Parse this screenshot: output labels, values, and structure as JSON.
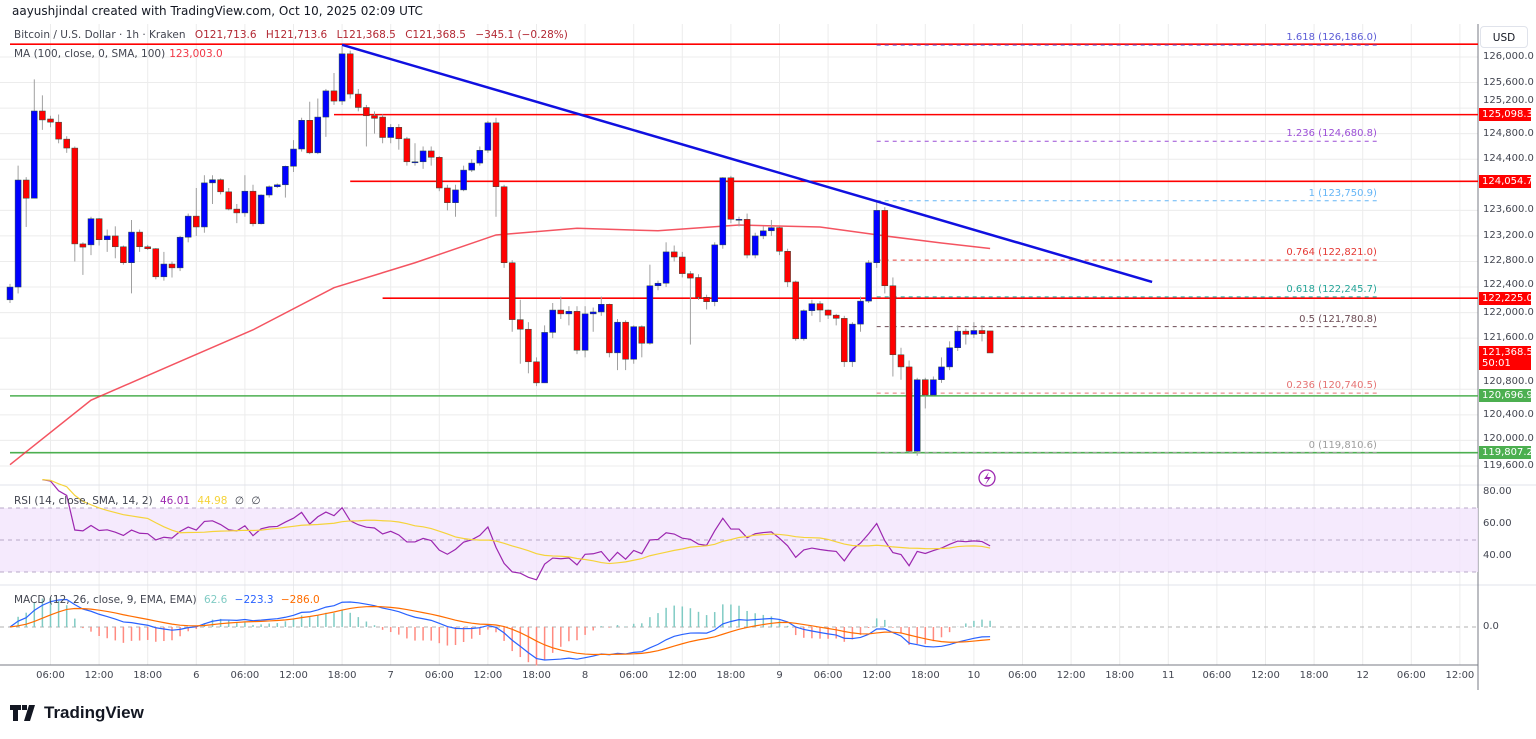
{
  "header": {
    "attribution": "aayushjindal created with TradingView.com, Oct 10, 2025 02:09 UTC"
  },
  "legend": {
    "symbol": "Bitcoin / U.S. Dollar · 1h · Kraken",
    "open": "O121,713.6",
    "high": "H121,713.6",
    "low": "L121,368.5",
    "close": "C121,368.5",
    "change": "−345.1 (−0.28%)"
  },
  "ma_legend": {
    "label": "MA (100, close, 0, SMA, 100)",
    "value": "123,003.0"
  },
  "rsi_legend": {
    "label": "RSI (14, close, SMA, 14, 2)",
    "rsi": "46.01",
    "sma": "44.98",
    "flag1": "∅",
    "flag2": "∅"
  },
  "macd_legend": {
    "label": "MACD (12, 26, close, 9, EMA, EMA)",
    "hist": "62.6",
    "macd": "−223.3",
    "signal": "−286.0"
  },
  "axis": {
    "currency": "USD",
    "price_ticks": [
      "126,000.0",
      "125,600.0",
      "125,200.0",
      "124,800.0",
      "124,400.0",
      "123,600.0",
      "123,200.0",
      "122,800.0",
      "122,400.0",
      "122,000.0",
      "121,600.0",
      "120,800.0",
      "120,400.0",
      "120,000.0",
      "119,600.0"
    ],
    "rsi_ticks": [
      "80.00",
      "60.00",
      "40.00"
    ],
    "macd_ticks": [
      "0.0"
    ],
    "time_ticks": [
      "06:00",
      "12:00",
      "18:00",
      "6",
      "06:00",
      "12:00",
      "18:00",
      "7",
      "06:00",
      "12:00",
      "18:00",
      "8",
      "06:00",
      "12:00",
      "18:00",
      "9",
      "06:00",
      "12:00",
      "18:00",
      "10",
      "06:00",
      "12:00",
      "18:00",
      "11",
      "06:00",
      "12:00",
      "18:00",
      "12",
      "06:00",
      "12:00"
    ]
  },
  "badges": [
    {
      "text": "125,098.3",
      "price": 125098.3,
      "color": "#ff0000"
    },
    {
      "text": "124,054.7",
      "price": 124054.7,
      "color": "#ff0000"
    },
    {
      "text": "122,225.0",
      "price": 122225.0,
      "color": "#ff0000"
    },
    {
      "text": "121,368.5",
      "sub": "50:01",
      "price": 121368.5,
      "color": "#ff0000"
    },
    {
      "text": "120,696.9",
      "price": 120696.9,
      "color": "#4caf50"
    },
    {
      "text": "119,807.2",
      "price": 119807.2,
      "color": "#4caf50"
    }
  ],
  "fib": [
    {
      "label": "1.618 (126,186.0)",
      "price": 126186.0,
      "color": "#5b5bd6"
    },
    {
      "label": "1.236 (124,680.8)",
      "price": 124680.8,
      "color": "#9c4fd6"
    },
    {
      "label": "1 (123,750.9)",
      "price": 123750.9,
      "color": "#64b5f6"
    },
    {
      "label": "0.764 (122,821.0)",
      "price": 122821.0,
      "color": "#e53935"
    },
    {
      "label": "0.618 (122,245.7)",
      "price": 122245.7,
      "color": "#26a69a"
    },
    {
      "label": "0.5 (121,780.8)",
      "price": 121780.8,
      "color": "#6d4c55"
    },
    {
      "label": "0.236 (120,740.5)",
      "price": 120740.5,
      "color": "#e57373"
    },
    {
      "label": "0 (119,810.6)",
      "price": 119810.6,
      "color": "#9e9e9e"
    }
  ],
  "fib_range": {
    "from": "Oct 9 12:00",
    "to": "Oct 12 02:00"
  },
  "brand": {
    "logo_text": "TradingView"
  },
  "colors": {
    "up": "#0000ff",
    "down": "#ff0000",
    "ma": "#f23645",
    "trend": "#1010e0",
    "rsi": "#9c27b0",
    "rsi_sma": "#f5d33a",
    "macd": "#2962ff",
    "signal": "#ff6d00",
    "support": "#4caf50",
    "resistance": "#ff0000"
  },
  "chart_data": {
    "type": "candlestick",
    "interval": "1h",
    "first_candle": "Oct 5 01:00",
    "ylim": [
      119500,
      126300
    ],
    "grid": true,
    "candles_ohlc": [
      [
        122200,
        122450,
        122150,
        122400
      ],
      [
        122400,
        124300,
        122300,
        124075
      ],
      [
        124075,
        124120,
        123340,
        123790
      ],
      [
        123790,
        125650,
        123790,
        125155
      ],
      [
        125155,
        125400,
        124860,
        125015
      ],
      [
        125030,
        125080,
        124900,
        124980
      ],
      [
        124980,
        125100,
        124650,
        124715
      ],
      [
        124715,
        124760,
        124500,
        124575
      ],
      [
        124575,
        124600,
        122800,
        123075
      ],
      [
        123075,
        123100,
        122590,
        123025
      ],
      [
        123060,
        123500,
        122900,
        123470
      ],
      [
        123470,
        123480,
        123050,
        123140
      ],
      [
        123140,
        123300,
        122950,
        123200
      ],
      [
        123200,
        123350,
        122850,
        123030
      ],
      [
        123030,
        123050,
        122750,
        122780
      ],
      [
        122780,
        123450,
        122300,
        123260
      ],
      [
        123260,
        123300,
        122950,
        123030
      ],
      [
        123030,
        123060,
        122980,
        123000
      ],
      [
        123000,
        123010,
        122520,
        122560
      ],
      [
        122560,
        122950,
        122500,
        122760
      ],
      [
        122760,
        122800,
        122550,
        122700
      ],
      [
        122700,
        123200,
        122650,
        123180
      ],
      [
        123180,
        123550,
        123100,
        123510
      ],
      [
        123510,
        123950,
        123200,
        123340
      ],
      [
        123340,
        124150,
        123250,
        124030
      ],
      [
        124030,
        124150,
        123700,
        124080
      ],
      [
        124080,
        124100,
        123850,
        123890
      ],
      [
        123890,
        123950,
        123600,
        123620
      ],
      [
        123620,
        123700,
        123400,
        123560
      ],
      [
        123560,
        124150,
        123500,
        123900
      ],
      [
        123900,
        124000,
        123350,
        123390
      ],
      [
        123390,
        123850,
        123380,
        123840
      ],
      [
        123840,
        123990,
        123800,
        123970
      ],
      [
        123970,
        124020,
        123950,
        124000
      ],
      [
        124000,
        124300,
        123800,
        124290
      ],
      [
        124290,
        124700,
        124200,
        124560
      ],
      [
        124560,
        125050,
        124520,
        125010
      ],
      [
        125010,
        125300,
        124480,
        124500
      ],
      [
        124500,
        125350,
        124480,
        125060
      ],
      [
        125060,
        125500,
        124750,
        125470
      ],
      [
        125470,
        125750,
        125250,
        125310
      ],
      [
        125310,
        126170,
        125250,
        126050
      ],
      [
        126050,
        126100,
        125350,
        125420
      ],
      [
        125420,
        125500,
        125150,
        125210
      ],
      [
        125210,
        125250,
        124600,
        125080
      ],
      [
        125080,
        125150,
        124800,
        125040
      ],
      [
        125060,
        125100,
        124650,
        124740
      ],
      [
        124740,
        124950,
        124650,
        124900
      ],
      [
        124900,
        124950,
        124550,
        124720
      ],
      [
        124720,
        124750,
        124300,
        124360
      ],
      [
        124360,
        124650,
        124300,
        124360
      ],
      [
        124360,
        124600,
        124250,
        124530
      ],
      [
        124530,
        124600,
        124300,
        124430
      ],
      [
        124430,
        124450,
        123900,
        123950
      ],
      [
        123950,
        124000,
        123600,
        123720
      ],
      [
        123720,
        124000,
        123500,
        123920
      ],
      [
        123920,
        124300,
        123900,
        124230
      ],
      [
        124230,
        124400,
        124200,
        124340
      ],
      [
        124340,
        124600,
        124300,
        124540
      ],
      [
        124540,
        125000,
        124500,
        124970
      ],
      [
        124970,
        125050,
        123500,
        123970
      ],
      [
        123970,
        124000,
        122700,
        122780
      ],
      [
        122780,
        122820,
        121700,
        121890
      ],
      [
        121890,
        122200,
        121200,
        121740
      ],
      [
        121740,
        121850,
        121050,
        121230
      ],
      [
        121230,
        121300,
        120850,
        120900
      ],
      [
        120900,
        121800,
        120900,
        121690
      ],
      [
        121690,
        122150,
        121600,
        122040
      ],
      [
        122040,
        122250,
        121900,
        121980
      ],
      [
        121980,
        122100,
        121800,
        122020
      ],
      [
        122020,
        122100,
        121350,
        121410
      ],
      [
        121410,
        122100,
        121300,
        121980
      ],
      [
        121980,
        122080,
        121700,
        122010
      ],
      [
        122010,
        122250,
        121950,
        122130
      ],
      [
        122130,
        122140,
        121300,
        121370
      ],
      [
        121370,
        121900,
        121100,
        121850
      ],
      [
        121850,
        121880,
        121100,
        121270
      ],
      [
        121270,
        121800,
        121200,
        121780
      ],
      [
        121780,
        121800,
        121300,
        121520
      ],
      [
        121520,
        122750,
        121500,
        122420
      ],
      [
        122420,
        122500,
        122350,
        122460
      ],
      [
        122460,
        123100,
        122400,
        122950
      ],
      [
        122950,
        123050,
        122800,
        122870
      ],
      [
        122870,
        122950,
        122550,
        122610
      ],
      [
        122610,
        122650,
        121500,
        122540
      ],
      [
        122550,
        122600,
        122200,
        122240
      ],
      [
        122240,
        122280,
        122050,
        122170
      ],
      [
        122170,
        123100,
        122100,
        123060
      ],
      [
        123060,
        124120,
        123000,
        124110
      ],
      [
        124110,
        124140,
        123400,
        123460
      ],
      [
        123460,
        123500,
        123350,
        123460
      ],
      [
        123460,
        123550,
        122850,
        122900
      ],
      [
        122900,
        123250,
        122850,
        123200
      ],
      [
        123200,
        123350,
        123150,
        123280
      ],
      [
        123280,
        123450,
        123200,
        123330
      ],
      [
        123330,
        123350,
        122900,
        122960
      ],
      [
        122960,
        123000,
        122400,
        122480
      ],
      [
        122480,
        122500,
        121560,
        121590
      ],
      [
        121590,
        122050,
        121560,
        122030
      ],
      [
        122030,
        122200,
        121950,
        122140
      ],
      [
        122140,
        122180,
        121850,
        122040
      ],
      [
        122040,
        122050,
        121900,
        121960
      ],
      [
        121960,
        121980,
        121800,
        121910
      ],
      [
        121910,
        121950,
        121150,
        121230
      ],
      [
        121230,
        121850,
        121150,
        121820
      ],
      [
        121820,
        122250,
        121700,
        122180
      ],
      [
        122180,
        122820,
        122150,
        122780
      ],
      [
        122780,
        123750,
        122700,
        123600
      ],
      [
        123600,
        123650,
        122300,
        122420
      ],
      [
        122420,
        122550,
        121000,
        121340
      ],
      [
        121340,
        121450,
        120950,
        121150
      ],
      [
        121150,
        121250,
        119810,
        119830
      ],
      [
        119830,
        120980,
        119760,
        120950
      ],
      [
        120950,
        120980,
        120500,
        120710
      ],
      [
        120710,
        121000,
        120700,
        120950
      ],
      [
        120950,
        121300,
        120900,
        121150
      ],
      [
        121150,
        121550,
        121100,
        121450
      ],
      [
        121450,
        121800,
        121400,
        121710
      ],
      [
        121710,
        121750,
        121500,
        121660
      ],
      [
        121660,
        121850,
        121600,
        121720
      ],
      [
        121720,
        121800,
        121550,
        121670
      ],
      [
        121713.6,
        121713.6,
        121368.5,
        121368.5
      ]
    ],
    "ma100": [
      {
        "t": "Oct 5 01:00",
        "v": 119620
      },
      {
        "t": "Oct 5 11:00",
        "v": 120630
      },
      {
        "t": "Oct 5 21:00",
        "v": 121180
      },
      {
        "t": "Oct 6 07:00",
        "v": 121730
      },
      {
        "t": "Oct 6 17:00",
        "v": 122390
      },
      {
        "t": "Oct 7 03:00",
        "v": 122780
      },
      {
        "t": "Oct 7 13:00",
        "v": 123215
      },
      {
        "t": "Oct 7 23:00",
        "v": 123320
      },
      {
        "t": "Oct 8 09:00",
        "v": 123280
      },
      {
        "t": "Oct 8 19:00",
        "v": 123370
      },
      {
        "t": "Oct 9 05:00",
        "v": 123340
      },
      {
        "t": "Oct 9 13:00",
        "v": 123200
      },
      {
        "t": "Oct 9 20:00",
        "v": 123090
      },
      {
        "t": "Oct 10 02:00",
        "v": 123003
      }
    ],
    "trendline": [
      {
        "t": "Oct 6 18:00",
        "price": 126190
      },
      {
        "t": "Oct 10 22:00",
        "price": 122480
      }
    ],
    "horizontal_lines": [
      {
        "price": 126200,
        "from": "Oct 5 01:00",
        "color": "#ff0000"
      },
      {
        "price": 125098.3,
        "from": "Oct 6 17:00",
        "color": "#ff0000"
      },
      {
        "price": 124054.7,
        "from": "Oct 6 19:00",
        "color": "#ff0000"
      },
      {
        "price": 122225.0,
        "from": "Oct 6 23:00",
        "color": "#ff0000"
      },
      {
        "price": 120696.9,
        "from": "Oct 5 01:00",
        "color": "#4caf50"
      },
      {
        "price": 119807.2,
        "from": "Oct 5 01:00",
        "color": "#4caf50"
      }
    ]
  }
}
